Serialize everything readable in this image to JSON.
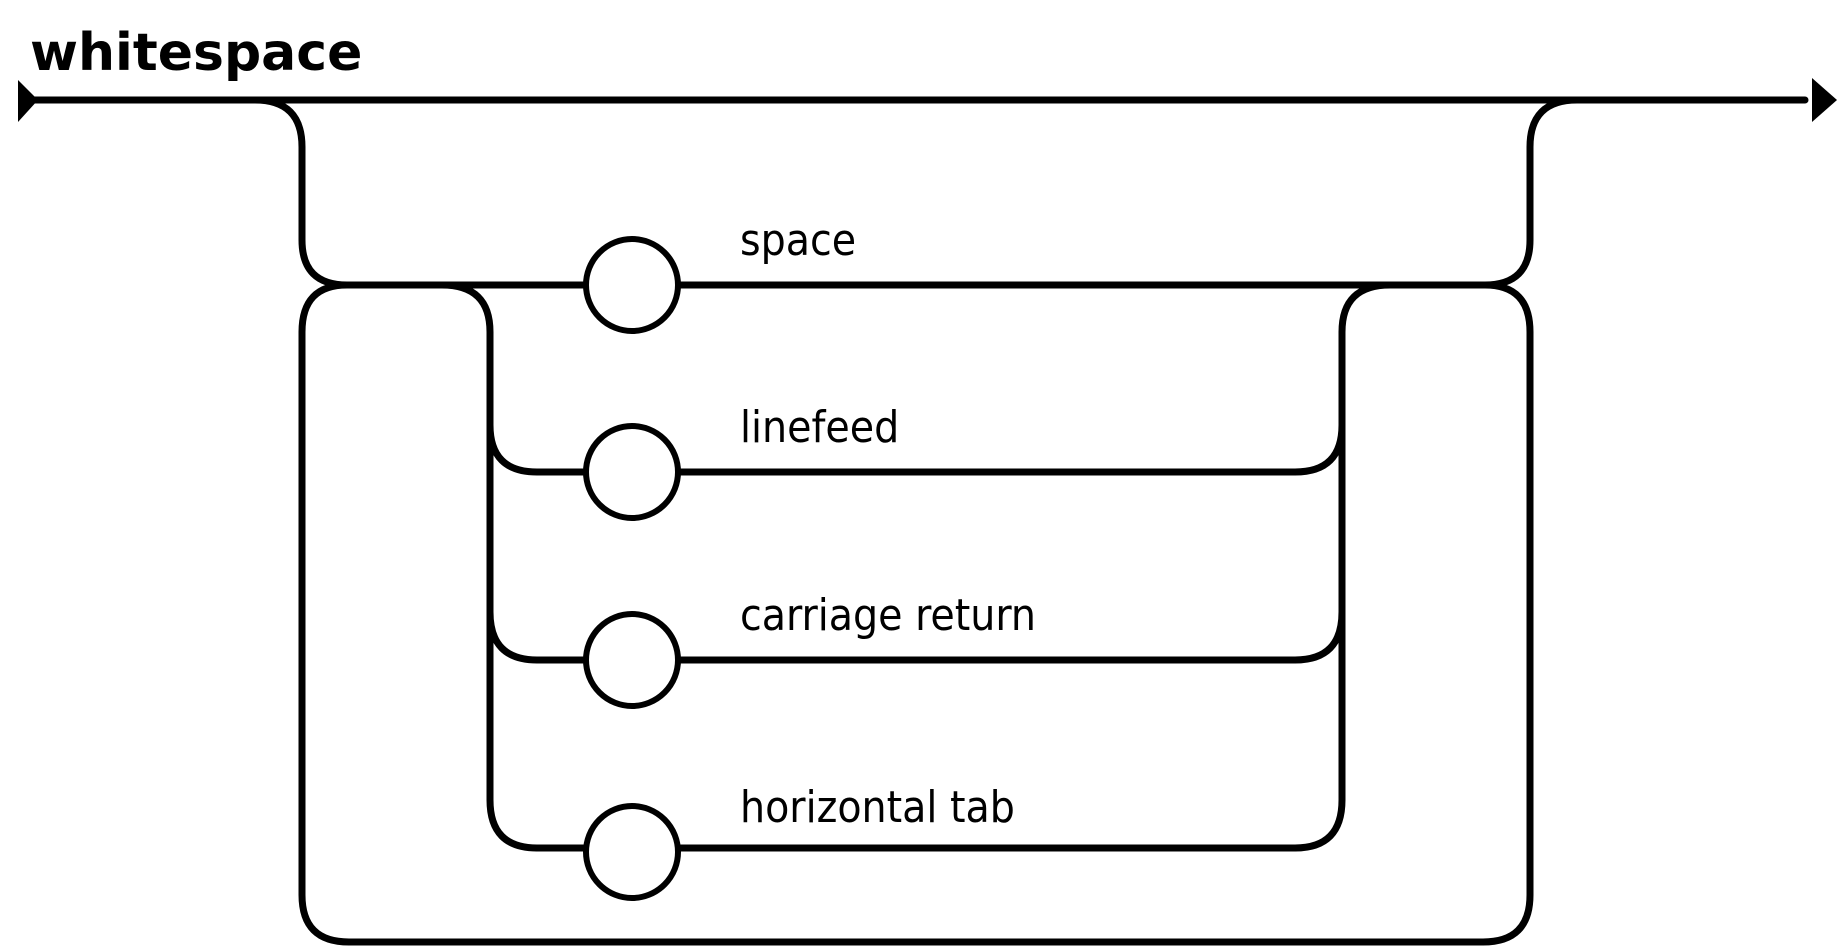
{
  "diagram": {
    "title": "whitespace",
    "alternatives": [
      {
        "label": "space"
      },
      {
        "label": "linefeed"
      },
      {
        "label": "carriage return"
      },
      {
        "label": "horizontal tab"
      }
    ]
  },
  "colors": {
    "line": "#000000",
    "background": "#ffffff"
  }
}
